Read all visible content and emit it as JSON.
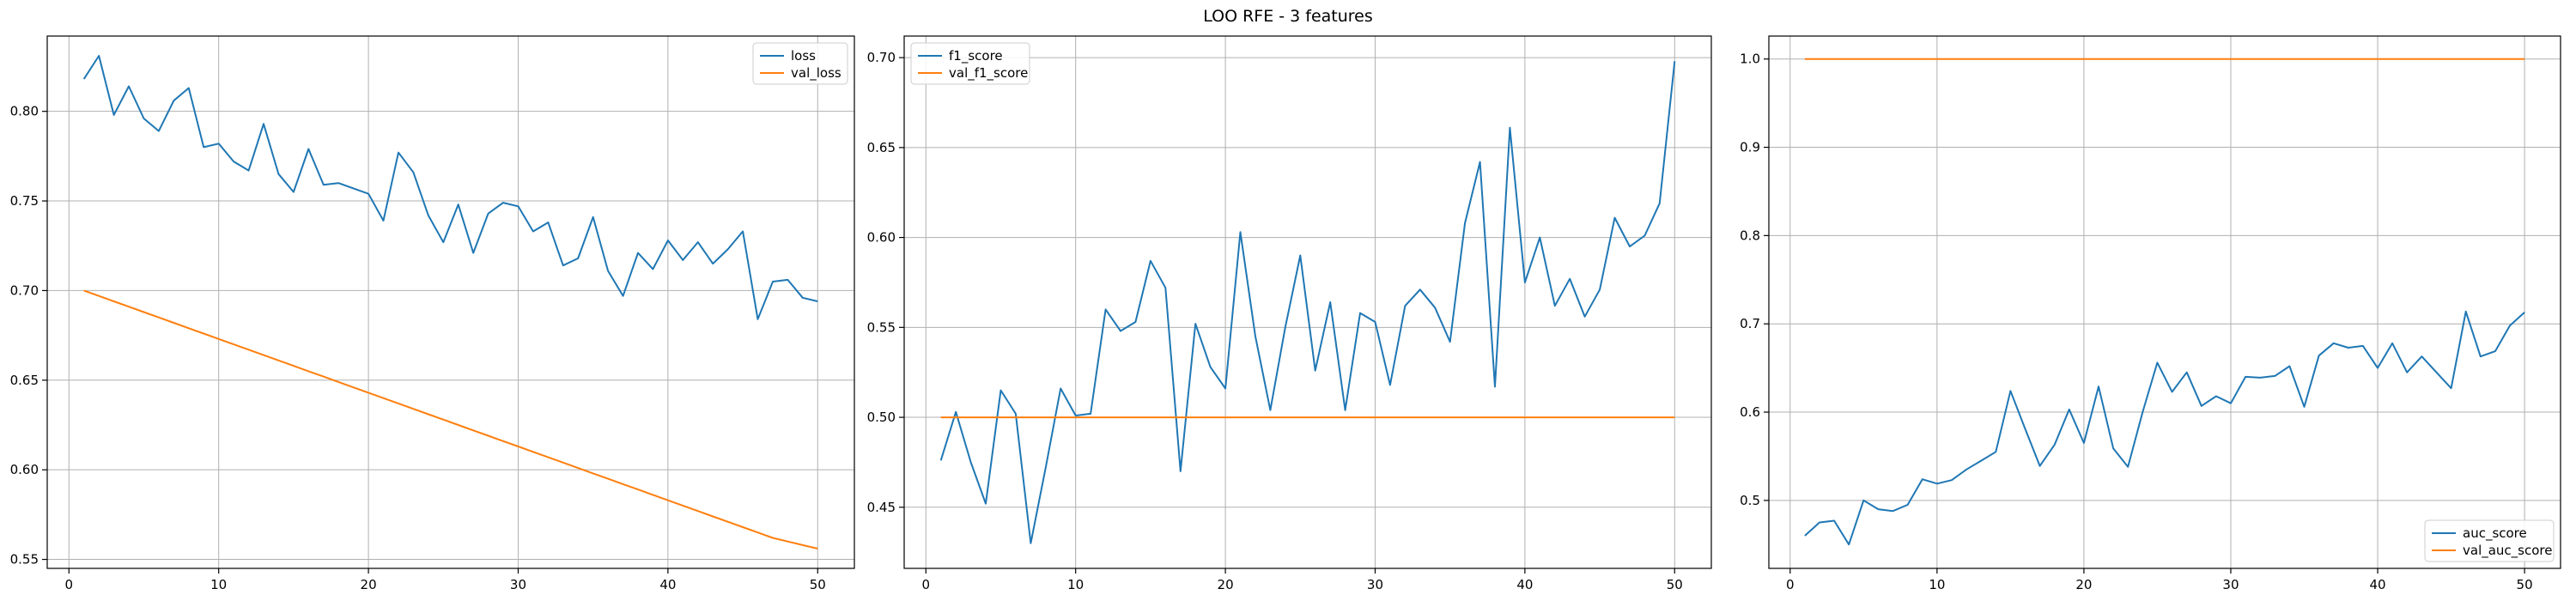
{
  "suptitle": "LOO RFE - 3 features",
  "colors": {
    "series1": "#1f77b4",
    "series2": "#ff7f0e",
    "grid": "#b0b0b0"
  },
  "chart_data": [
    {
      "type": "line",
      "title": "",
      "xlabel": "",
      "ylabel": "",
      "xlim": [
        -1.45,
        52.45
      ],
      "ylim": [
        0.545,
        0.842
      ],
      "xticks": [
        0,
        10,
        20,
        30,
        40,
        50
      ],
      "yticks": [
        0.55,
        0.6,
        0.65,
        0.7,
        0.75,
        0.8
      ],
      "yformat": 2,
      "grid": true,
      "legend": "upper right",
      "x": [
        1,
        2,
        3,
        4,
        5,
        6,
        7,
        8,
        9,
        10,
        11,
        12,
        13,
        14,
        15,
        16,
        17,
        18,
        19,
        20,
        21,
        22,
        23,
        24,
        25,
        26,
        27,
        28,
        29,
        30,
        31,
        32,
        33,
        34,
        35,
        36,
        37,
        38,
        39,
        40,
        41,
        42,
        43,
        44,
        45,
        46,
        47,
        48,
        49,
        50
      ],
      "series": [
        {
          "name": "loss",
          "values": [
            0.818,
            0.831,
            0.798,
            0.814,
            0.796,
            0.789,
            0.806,
            0.813,
            0.78,
            0.782,
            0.772,
            0.767,
            0.793,
            0.765,
            0.755,
            0.779,
            0.759,
            0.76,
            0.757,
            0.754,
            0.739,
            0.777,
            0.766,
            0.742,
            0.727,
            0.748,
            0.721,
            0.743,
            0.749,
            0.747,
            0.733,
            0.738,
            0.714,
            0.718,
            0.741,
            0.711,
            0.697,
            0.721,
            0.712,
            0.728,
            0.717,
            0.727,
            0.715,
            0.723,
            0.733,
            0.684,
            0.705,
            0.706,
            0.696,
            0.694
          ]
        },
        {
          "name": "val_loss",
          "values": [
            0.7,
            0.697,
            0.694,
            0.691,
            0.688,
            0.685,
            0.682,
            0.679,
            0.676,
            0.673,
            0.67,
            0.667,
            0.664,
            0.661,
            0.658,
            0.655,
            0.652,
            0.649,
            0.646,
            0.643,
            0.64,
            0.637,
            0.634,
            0.631,
            0.628,
            0.625,
            0.622,
            0.619,
            0.616,
            0.613,
            0.61,
            0.607,
            0.604,
            0.601,
            0.598,
            0.595,
            0.592,
            0.589,
            0.586,
            0.583,
            0.58,
            0.577,
            0.574,
            0.571,
            0.568,
            0.565,
            0.562,
            0.56,
            0.558,
            0.556
          ]
        }
      ]
    },
    {
      "type": "line",
      "title": "",
      "xlabel": "",
      "ylabel": "",
      "xlim": [
        -1.45,
        52.45
      ],
      "ylim": [
        0.416,
        0.712
      ],
      "xticks": [
        0,
        10,
        20,
        30,
        40,
        50
      ],
      "yticks": [
        0.45,
        0.5,
        0.55,
        0.6,
        0.65,
        0.7
      ],
      "yformat": 2,
      "grid": true,
      "legend": "upper left",
      "x": [
        1,
        2,
        3,
        4,
        5,
        6,
        7,
        8,
        9,
        10,
        11,
        12,
        13,
        14,
        15,
        16,
        17,
        18,
        19,
        20,
        21,
        22,
        23,
        24,
        25,
        26,
        27,
        28,
        29,
        30,
        31,
        32,
        33,
        34,
        35,
        36,
        37,
        38,
        39,
        40,
        41,
        42,
        43,
        44,
        45,
        46,
        47,
        48,
        49,
        50
      ],
      "series": [
        {
          "name": "f1_score",
          "values": [
            0.476,
            0.503,
            0.475,
            0.452,
            0.515,
            0.502,
            0.43,
            0.472,
            0.516,
            0.501,
            0.502,
            0.56,
            0.548,
            0.553,
            0.587,
            0.572,
            0.47,
            0.552,
            0.528,
            0.516,
            0.603,
            0.545,
            0.504,
            0.55,
            0.59,
            0.526,
            0.564,
            0.504,
            0.558,
            0.553,
            0.518,
            0.562,
            0.571,
            0.561,
            0.542,
            0.608,
            0.642,
            0.517,
            0.661,
            0.575,
            0.6,
            0.562,
            0.577,
            0.556,
            0.571,
            0.611,
            0.595,
            0.601,
            0.619,
            0.698
          ]
        },
        {
          "name": "val_f1_score",
          "values": [
            0.5,
            0.5,
            0.5,
            0.5,
            0.5,
            0.5,
            0.5,
            0.5,
            0.5,
            0.5,
            0.5,
            0.5,
            0.5,
            0.5,
            0.5,
            0.5,
            0.5,
            0.5,
            0.5,
            0.5,
            0.5,
            0.5,
            0.5,
            0.5,
            0.5,
            0.5,
            0.5,
            0.5,
            0.5,
            0.5,
            0.5,
            0.5,
            0.5,
            0.5,
            0.5,
            0.5,
            0.5,
            0.5,
            0.5,
            0.5,
            0.5,
            0.5,
            0.5,
            0.5,
            0.5,
            0.5,
            0.5,
            0.5,
            0.5,
            0.5
          ]
        }
      ]
    },
    {
      "type": "line",
      "title": "",
      "xlabel": "",
      "ylabel": "",
      "xlim": [
        -1.45,
        52.45
      ],
      "ylim": [
        0.423,
        1.026
      ],
      "xticks": [
        0,
        10,
        20,
        30,
        40,
        50
      ],
      "yticks": [
        0.5,
        0.6,
        0.7,
        0.8,
        0.9,
        1.0
      ],
      "yformat": 1,
      "grid": true,
      "legend": "lower right",
      "x": [
        1,
        2,
        3,
        4,
        5,
        6,
        7,
        8,
        9,
        10,
        11,
        12,
        13,
        14,
        15,
        16,
        17,
        18,
        19,
        20,
        21,
        22,
        23,
        24,
        25,
        26,
        27,
        28,
        29,
        30,
        31,
        32,
        33,
        34,
        35,
        36,
        37,
        38,
        39,
        40,
        41,
        42,
        43,
        44,
        45,
        46,
        47,
        48,
        49,
        50
      ],
      "series": [
        {
          "name": "auc_score",
          "values": [
            0.46,
            0.475,
            0.477,
            0.45,
            0.5,
            0.49,
            0.488,
            0.495,
            0.524,
            0.519,
            0.523,
            0.535,
            0.545,
            0.555,
            0.624,
            0.581,
            0.539,
            0.563,
            0.603,
            0.565,
            0.629,
            0.559,
            0.538,
            0.6,
            0.656,
            0.623,
            0.645,
            0.607,
            0.618,
            0.61,
            0.64,
            0.639,
            0.641,
            0.652,
            0.606,
            0.664,
            0.678,
            0.673,
            0.675,
            0.65,
            0.678,
            0.645,
            0.663,
            0.645,
            0.627,
            0.714,
            0.663,
            0.669,
            0.698,
            0.713
          ]
        },
        {
          "name": "val_auc_score",
          "values": [
            1.0,
            1.0,
            1.0,
            1.0,
            1.0,
            1.0,
            1.0,
            1.0,
            1.0,
            1.0,
            1.0,
            1.0,
            1.0,
            1.0,
            1.0,
            1.0,
            1.0,
            1.0,
            1.0,
            1.0,
            1.0,
            1.0,
            1.0,
            1.0,
            1.0,
            1.0,
            1.0,
            1.0,
            1.0,
            1.0,
            1.0,
            1.0,
            1.0,
            1.0,
            1.0,
            1.0,
            1.0,
            1.0,
            1.0,
            1.0,
            1.0,
            1.0,
            1.0,
            1.0,
            1.0,
            1.0,
            1.0,
            1.0,
            1.0,
            1.0
          ]
        }
      ]
    }
  ]
}
